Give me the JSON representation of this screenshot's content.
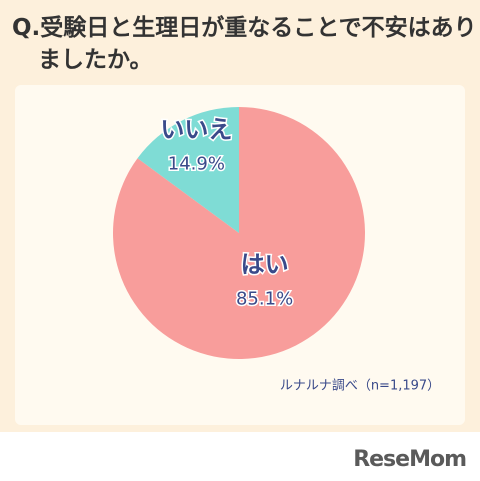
{
  "chart_data": {
    "type": "pie",
    "title": "Q.受験日と生理日が重なることで不安はありましたか。",
    "categories": [
      "はい",
      "いいえ"
    ],
    "values": [
      85.1,
      14.9
    ],
    "value_labels": [
      "85.1%",
      "14.9%"
    ],
    "colors": [
      "#f89d9b",
      "#7fdcd5"
    ],
    "note": "ルナルナ調べ（n=1,197）"
  },
  "brand": "ReseMom"
}
